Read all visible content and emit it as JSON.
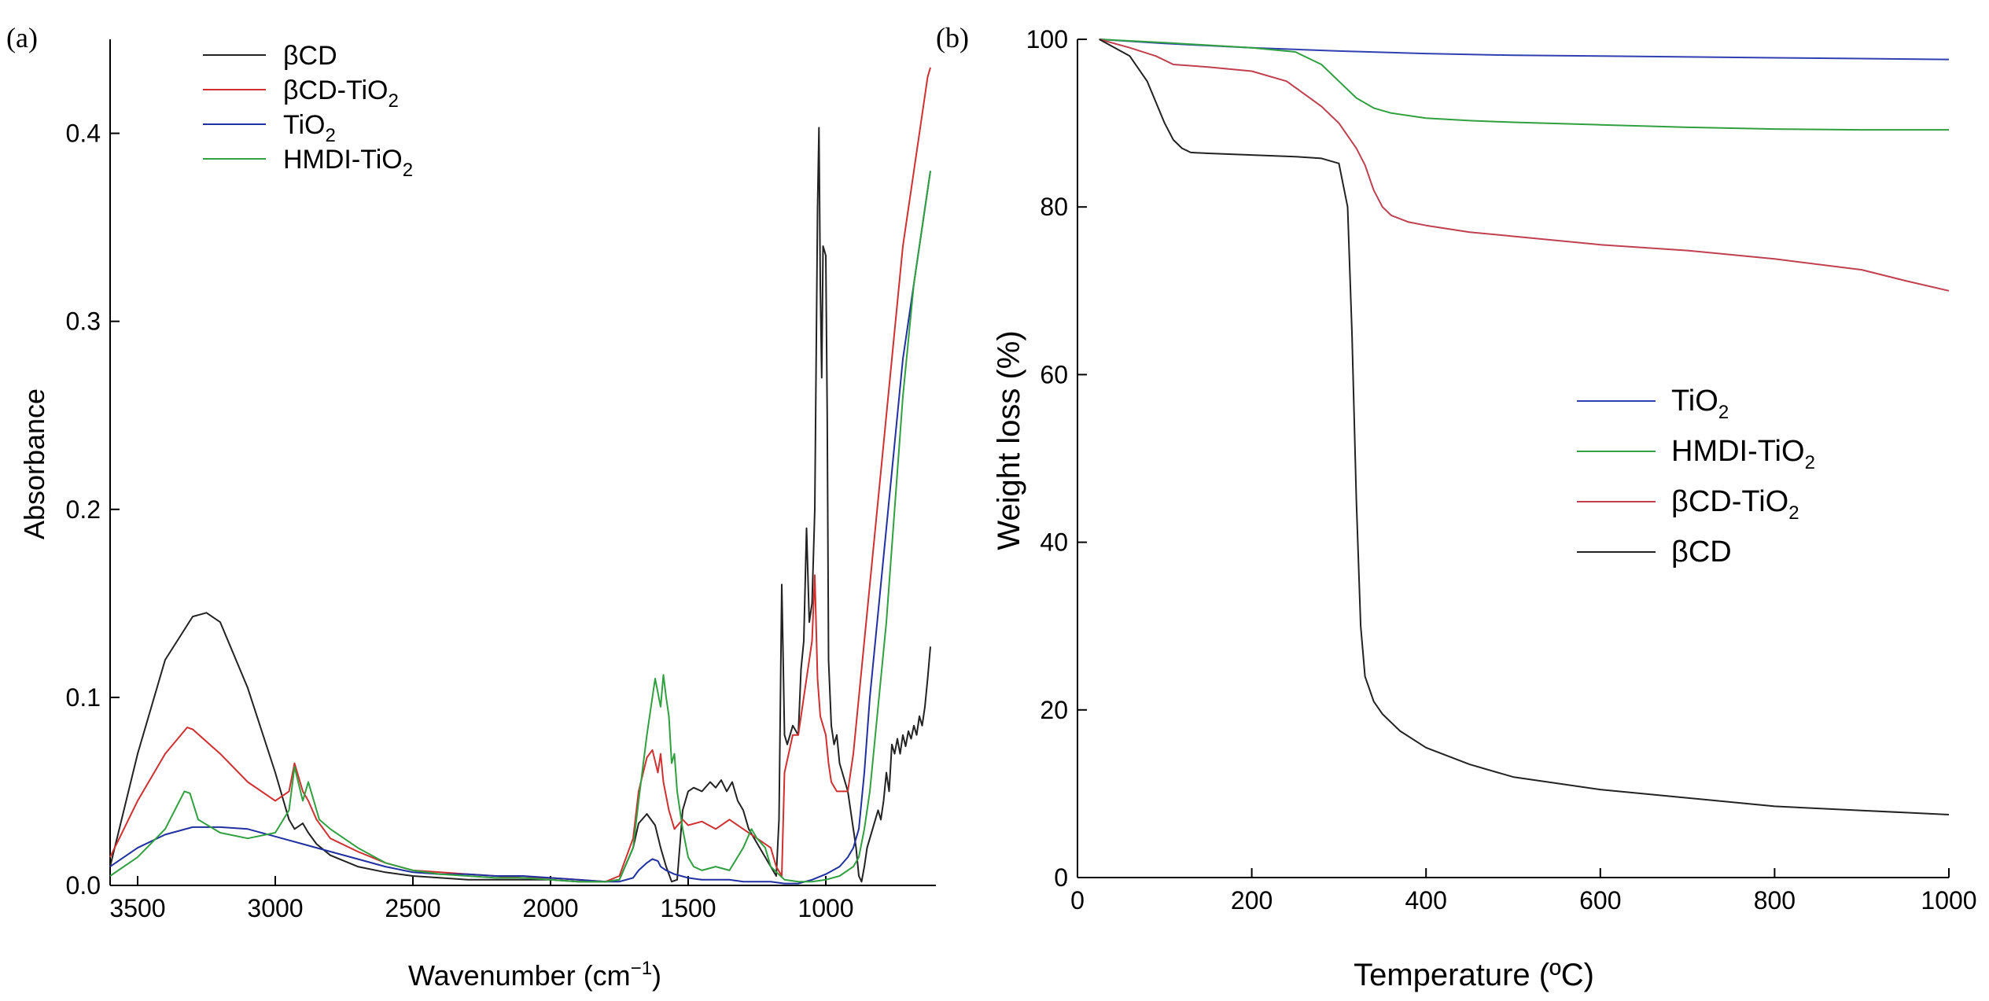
{
  "chart_data": [
    {
      "panel_label": "(a)",
      "type": "line",
      "title": "",
      "xlabel": "Wavenumber (cm",
      "xlabel_sup": "−1",
      "xlabel_tail": ")",
      "ylabel": "Absorbance",
      "xlim": [
        3600,
        600
      ],
      "ylim": [
        0,
        0.45
      ],
      "xticks": [
        3500,
        3000,
        2500,
        2000,
        1500,
        1000
      ],
      "xtick_labels": [
        "3500",
        "3000",
        "2500",
        "2000",
        "1500",
        "1000"
      ],
      "yticks": [
        0.0,
        0.1,
        0.2,
        0.3,
        0.4
      ],
      "ytick_labels": [
        "0.0",
        "0.1",
        "0.2",
        "0.3",
        "0.4"
      ],
      "legend_position": "top-left",
      "legend": [
        {
          "text": "βCD",
          "sub": ""
        },
        {
          "text": "βCD-TiO",
          "sub": "2"
        },
        {
          "text": "TiO",
          "sub": "2"
        },
        {
          "text": "HMDI-TiO",
          "sub": "2"
        }
      ],
      "series": [
        {
          "name": "βCD",
          "color": "#222222",
          "x": [
            3600,
            3500,
            3400,
            3300,
            3250,
            3200,
            3100,
            3000,
            2950,
            2930,
            2900,
            2880,
            2850,
            2800,
            2700,
            2600,
            2500,
            2400,
            2300,
            2200,
            2100,
            2000,
            1900,
            1800,
            1750,
            1700,
            1680,
            1650,
            1620,
            1600,
            1580,
            1560,
            1540,
            1520,
            1500,
            1480,
            1450,
            1420,
            1400,
            1380,
            1360,
            1340,
            1320,
            1300,
            1280,
            1260,
            1240,
            1220,
            1200,
            1180,
            1170,
            1160,
            1155,
            1150,
            1140,
            1120,
            1100,
            1090,
            1080,
            1070,
            1060,
            1050,
            1040,
            1030,
            1025,
            1020,
            1015,
            1010,
            1000,
            995,
            990,
            980,
            970,
            960,
            950,
            940,
            930,
            920,
            910,
            900,
            890,
            880,
            870,
            860,
            850,
            840,
            830,
            820,
            810,
            800,
            790,
            780,
            770,
            760,
            750,
            740,
            730,
            720,
            710,
            700,
            690,
            680,
            670,
            660,
            650,
            640,
            630,
            620
          ],
          "y": [
            0.01,
            0.07,
            0.12,
            0.143,
            0.145,
            0.14,
            0.105,
            0.06,
            0.035,
            0.03,
            0.033,
            0.028,
            0.022,
            0.016,
            0.01,
            0.007,
            0.005,
            0.004,
            0.003,
            0.003,
            0.003,
            0.003,
            0.002,
            0.002,
            0.003,
            0.02,
            0.033,
            0.038,
            0.032,
            0.02,
            0.01,
            0.002,
            0.003,
            0.04,
            0.05,
            0.052,
            0.05,
            0.055,
            0.052,
            0.056,
            0.05,
            0.055,
            0.045,
            0.04,
            0.03,
            0.025,
            0.02,
            0.015,
            0.01,
            0.005,
            0.035,
            0.16,
            0.12,
            0.08,
            0.075,
            0.085,
            0.08,
            0.115,
            0.13,
            0.19,
            0.14,
            0.15,
            0.2,
            0.36,
            0.403,
            0.32,
            0.27,
            0.34,
            0.335,
            0.25,
            0.12,
            0.085,
            0.075,
            0.08,
            0.065,
            0.06,
            0.055,
            0.05,
            0.04,
            0.03,
            0.02,
            0.005,
            0.002,
            0.01,
            0.02,
            0.025,
            0.03,
            0.035,
            0.04,
            0.035,
            0.045,
            0.06,
            0.05,
            0.075,
            0.07,
            0.078,
            0.07,
            0.08,
            0.074,
            0.082,
            0.078,
            0.085,
            0.08,
            0.09,
            0.085,
            0.095,
            0.11,
            0.127
          ]
        },
        {
          "name": "βCD-TiO2",
          "color": "#d03030",
          "x": [
            3600,
            3500,
            3400,
            3320,
            3300,
            3200,
            3100,
            3000,
            2950,
            2930,
            2900,
            2880,
            2850,
            2800,
            2700,
            2600,
            2500,
            2400,
            2300,
            2200,
            2100,
            2000,
            1900,
            1800,
            1750,
            1700,
            1680,
            1650,
            1630,
            1610,
            1600,
            1590,
            1570,
            1550,
            1520,
            1500,
            1450,
            1400,
            1350,
            1300,
            1250,
            1200,
            1180,
            1160,
            1150,
            1120,
            1100,
            1080,
            1060,
            1050,
            1040,
            1030,
            1020,
            1010,
            1000,
            990,
            980,
            960,
            950,
            940,
            920,
            900,
            880,
            860,
            840,
            820,
            800,
            780,
            760,
            740,
            720,
            700,
            680,
            660,
            640,
            630,
            620
          ],
          "y": [
            0.015,
            0.045,
            0.07,
            0.084,
            0.083,
            0.07,
            0.055,
            0.045,
            0.05,
            0.065,
            0.05,
            0.045,
            0.035,
            0.025,
            0.018,
            0.012,
            0.008,
            0.007,
            0.006,
            0.005,
            0.004,
            0.004,
            0.003,
            0.002,
            0.005,
            0.025,
            0.05,
            0.068,
            0.072,
            0.06,
            0.07,
            0.055,
            0.04,
            0.03,
            0.035,
            0.032,
            0.034,
            0.03,
            0.035,
            0.03,
            0.025,
            0.02,
            0.01,
            0.005,
            0.06,
            0.08,
            0.08,
            0.1,
            0.12,
            0.13,
            0.165,
            0.11,
            0.09,
            0.085,
            0.08,
            0.065,
            0.055,
            0.05,
            0.05,
            0.05,
            0.05,
            0.07,
            0.1,
            0.13,
            0.16,
            0.19,
            0.22,
            0.25,
            0.28,
            0.31,
            0.34,
            0.36,
            0.38,
            0.4,
            0.42,
            0.43,
            0.435
          ]
        },
        {
          "name": "TiO2",
          "color": "#2030a0",
          "x": [
            3600,
            3500,
            3400,
            3300,
            3200,
            3100,
            3000,
            2900,
            2800,
            2700,
            2600,
            2500,
            2400,
            2300,
            2200,
            2100,
            2000,
            1900,
            1800,
            1750,
            1700,
            1680,
            1650,
            1630,
            1610,
            1600,
            1580,
            1550,
            1500,
            1450,
            1400,
            1350,
            1300,
            1250,
            1200,
            1150,
            1100,
            1050,
            1000,
            950,
            920,
            900,
            880,
            860,
            850,
            840,
            820,
            800,
            780,
            760,
            740,
            720,
            700,
            680,
            660,
            640,
            630,
            620
          ],
          "y": [
            0.01,
            0.02,
            0.027,
            0.031,
            0.031,
            0.03,
            0.026,
            0.022,
            0.018,
            0.014,
            0.01,
            0.007,
            0.006,
            0.006,
            0.005,
            0.005,
            0.004,
            0.003,
            0.002,
            0.002,
            0.004,
            0.008,
            0.012,
            0.014,
            0.013,
            0.01,
            0.008,
            0.006,
            0.004,
            0.003,
            0.003,
            0.003,
            0.002,
            0.002,
            0.002,
            0.001,
            0.001,
            0.003,
            0.006,
            0.01,
            0.015,
            0.02,
            0.03,
            0.06,
            0.08,
            0.1,
            0.13,
            0.16,
            0.19,
            0.22,
            0.25,
            0.28,
            0.3,
            0.32,
            0.34,
            0.36,
            0.37,
            0.38
          ]
        },
        {
          "name": "HMDI-TiO2",
          "color": "#30a040",
          "x": [
            3600,
            3500,
            3400,
            3330,
            3310,
            3280,
            3200,
            3100,
            3000,
            2950,
            2930,
            2900,
            2880,
            2860,
            2840,
            2800,
            2700,
            2600,
            2500,
            2400,
            2300,
            2200,
            2100,
            2000,
            1900,
            1800,
            1750,
            1700,
            1680,
            1650,
            1620,
            1600,
            1590,
            1580,
            1570,
            1560,
            1550,
            1540,
            1520,
            1500,
            1480,
            1450,
            1400,
            1350,
            1300,
            1270,
            1250,
            1220,
            1200,
            1150,
            1100,
            1050,
            1000,
            950,
            900,
            880,
            860,
            840,
            820,
            800,
            780,
            760,
            740,
            720,
            700,
            680,
            660,
            640,
            630,
            620
          ],
          "y": [
            0.005,
            0.015,
            0.03,
            0.05,
            0.049,
            0.035,
            0.028,
            0.025,
            0.028,
            0.04,
            0.063,
            0.045,
            0.055,
            0.045,
            0.035,
            0.03,
            0.02,
            0.012,
            0.008,
            0.006,
            0.005,
            0.004,
            0.004,
            0.003,
            0.002,
            0.002,
            0.003,
            0.02,
            0.045,
            0.08,
            0.11,
            0.095,
            0.112,
            0.1,
            0.09,
            0.065,
            0.07,
            0.05,
            0.03,
            0.015,
            0.01,
            0.008,
            0.01,
            0.008,
            0.02,
            0.03,
            0.025,
            0.02,
            0.01,
            0.003,
            0.002,
            0.002,
            0.003,
            0.005,
            0.01,
            0.015,
            0.03,
            0.05,
            0.08,
            0.11,
            0.14,
            0.18,
            0.22,
            0.26,
            0.29,
            0.32,
            0.34,
            0.36,
            0.37,
            0.38
          ]
        }
      ]
    },
    {
      "panel_label": "(b)",
      "type": "line",
      "title": "",
      "xlabel": "Temperature (ºC)",
      "ylabel": "Weight loss (%)",
      "xlim": [
        0,
        1000
      ],
      "ylim": [
        0,
        100
      ],
      "xticks": [
        0,
        200,
        400,
        600,
        800,
        1000
      ],
      "xtick_labels": [
        "0",
        "200",
        "400",
        "600",
        "800",
        "1000"
      ],
      "yticks": [
        0,
        20,
        40,
        60,
        80,
        100
      ],
      "ytick_labels": [
        "0",
        "20",
        "40",
        "60",
        "80",
        "100"
      ],
      "legend_position": "center-right",
      "legend": [
        {
          "text": "TiO",
          "sub": "2"
        },
        {
          "text": "HMDI-TiO",
          "sub": "2"
        },
        {
          "text": "βCD-TiO",
          "sub": "2"
        },
        {
          "text": "βCD",
          "sub": ""
        }
      ],
      "series": [
        {
          "name": "TiO2",
          "color": "#3040b0",
          "x": [
            25,
            100,
            200,
            300,
            400,
            500,
            600,
            700,
            800,
            900,
            1000
          ],
          "y": [
            100,
            99.5,
            99,
            98.6,
            98.3,
            98.1,
            98,
            97.9,
            97.8,
            97.7,
            97.6
          ]
        },
        {
          "name": "HMDI-TiO2",
          "color": "#30a040",
          "x": [
            25,
            100,
            150,
            200,
            250,
            280,
            300,
            320,
            340,
            360,
            400,
            450,
            500,
            600,
            700,
            800,
            900,
            1000
          ],
          "y": [
            100,
            99.6,
            99.3,
            99,
            98.5,
            97,
            95,
            93,
            91.8,
            91.2,
            90.6,
            90.3,
            90.1,
            89.8,
            89.5,
            89.3,
            89.2,
            89.2
          ]
        },
        {
          "name": "βCD-TiO2",
          "color": "#c04050",
          "x": [
            25,
            60,
            90,
            110,
            150,
            200,
            240,
            260,
            280,
            300,
            320,
            330,
            340,
            350,
            360,
            380,
            400,
            450,
            500,
            600,
            700,
            800,
            900,
            950,
            1000
          ],
          "y": [
            100,
            99,
            98,
            97,
            96.7,
            96.2,
            95,
            93.5,
            92,
            90,
            87,
            85,
            82,
            80,
            79,
            78.2,
            77.8,
            77,
            76.5,
            75.5,
            74.8,
            73.8,
            72.5,
            71.2,
            70
          ]
        },
        {
          "name": "βCD",
          "color": "#222222",
          "x": [
            25,
            60,
            80,
            100,
            110,
            120,
            130,
            150,
            200,
            250,
            280,
            300,
            310,
            315,
            320,
            325,
            330,
            340,
            350,
            370,
            400,
            450,
            500,
            600,
            700,
            800,
            900,
            1000
          ],
          "y": [
            100,
            98,
            95,
            90,
            88,
            87,
            86.5,
            86.4,
            86.2,
            86,
            85.8,
            85.2,
            80,
            65,
            45,
            30,
            24,
            21,
            19.5,
            17.5,
            15.5,
            13.5,
            12,
            10.5,
            9.5,
            8.5,
            8,
            7.5
          ]
        }
      ]
    }
  ]
}
